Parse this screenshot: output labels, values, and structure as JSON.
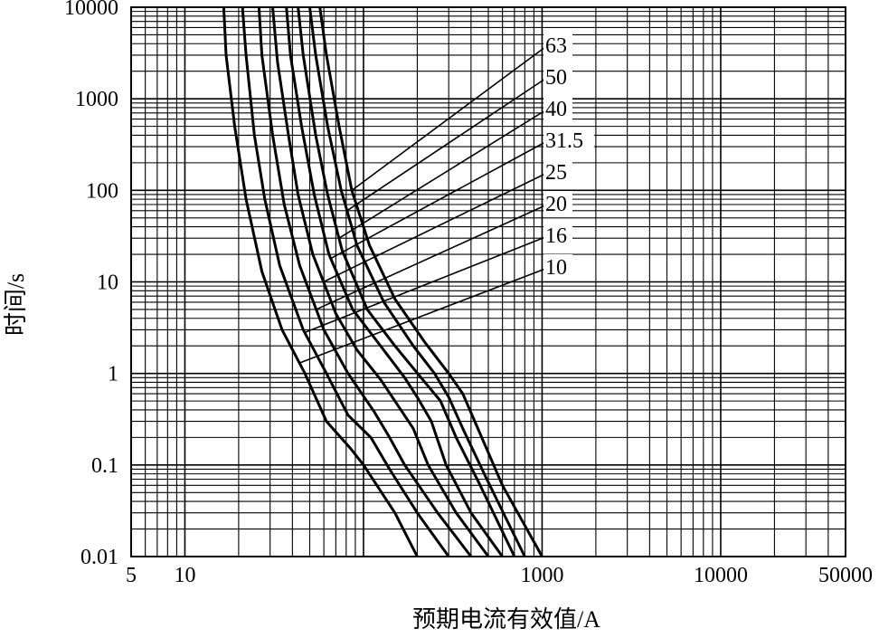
{
  "chart_data": {
    "type": "line",
    "title": "",
    "xlabel": "预期电流有效值/A",
    "ylabel": "时间/s",
    "xscale": "log",
    "yscale": "log",
    "xlim": [
      5,
      50000
    ],
    "ylim": [
      0.01,
      10000
    ],
    "grid": true,
    "x_ticks": [
      {
        "value": 5,
        "label": "5"
      },
      {
        "value": 10,
        "label": "10"
      },
      {
        "value": 1000,
        "label": "1000"
      },
      {
        "value": 10000,
        "label": "10000"
      },
      {
        "value": 50000,
        "label": "50000"
      }
    ],
    "y_ticks": [
      {
        "value": 0.01,
        "label": "0.01"
      },
      {
        "value": 0.1,
        "label": "0.1"
      },
      {
        "value": 1,
        "label": "1"
      },
      {
        "value": 10,
        "label": "10"
      },
      {
        "value": 100,
        "label": "100"
      },
      {
        "value": 1000,
        "label": "1000"
      },
      {
        "value": 10000,
        "label": "10000"
      }
    ],
    "series": [
      {
        "name": "10",
        "points": [
          [
            16.5,
            10000
          ],
          [
            17,
            3000
          ],
          [
            19,
            500
          ],
          [
            22,
            80
          ],
          [
            27,
            13
          ],
          [
            35,
            3
          ],
          [
            47,
            1
          ],
          [
            62,
            0.3
          ],
          [
            85,
            0.15
          ],
          [
            100,
            0.1
          ],
          [
            150,
            0.03
          ],
          [
            200,
            0.01
          ]
        ]
      },
      {
        "name": "16",
        "points": [
          [
            21,
            10000
          ],
          [
            22,
            3000
          ],
          [
            24.5,
            400
          ],
          [
            28,
            80
          ],
          [
            34,
            15
          ],
          [
            46,
            3
          ],
          [
            62,
            1
          ],
          [
            82,
            0.35
          ],
          [
            110,
            0.2
          ],
          [
            140,
            0.09
          ],
          [
            200,
            0.03
          ],
          [
            300,
            0.01
          ]
        ]
      },
      {
        "name": "20",
        "points": [
          [
            26,
            10000
          ],
          [
            27,
            3000
          ],
          [
            31,
            400
          ],
          [
            36,
            70
          ],
          [
            44,
            15
          ],
          [
            60,
            3
          ],
          [
            82,
            1
          ],
          [
            115,
            0.38
          ],
          [
            140,
            0.2
          ],
          [
            170,
            0.1
          ],
          [
            260,
            0.03
          ],
          [
            400,
            0.01
          ]
        ]
      },
      {
        "name": "25",
        "points": [
          [
            31,
            10000
          ],
          [
            33,
            2500
          ],
          [
            38,
            400
          ],
          [
            43,
            90
          ],
          [
            52,
            20
          ],
          [
            70,
            4.5
          ],
          [
            92,
            1.8
          ],
          [
            125,
            0.85
          ],
          [
            150,
            0.5
          ],
          [
            190,
            0.25
          ],
          [
            230,
            0.1
          ],
          [
            330,
            0.03
          ],
          [
            500,
            0.01
          ]
        ]
      },
      {
        "name": "31.5",
        "points": [
          [
            37,
            10000
          ],
          [
            39,
            3000
          ],
          [
            45,
            500
          ],
          [
            53,
            90
          ],
          [
            64,
            20
          ],
          [
            87,
            5
          ],
          [
            120,
            2.2
          ],
          [
            170,
            0.9
          ],
          [
            200,
            0.55
          ],
          [
            240,
            0.3
          ],
          [
            290,
            0.1
          ],
          [
            400,
            0.03
          ],
          [
            600,
            0.01
          ]
        ]
      },
      {
        "name": "40",
        "points": [
          [
            43,
            10000
          ],
          [
            46,
            3000
          ],
          [
            54,
            400
          ],
          [
            63,
            90
          ],
          [
            76,
            22
          ],
          [
            105,
            5
          ],
          [
            150,
            2
          ],
          [
            210,
            0.9
          ],
          [
            270,
            0.5
          ],
          [
            330,
            0.2
          ],
          [
            450,
            0.06
          ],
          [
            700,
            0.01
          ]
        ]
      },
      {
        "name": "50",
        "points": [
          [
            50,
            10000
          ],
          [
            54,
            3000
          ],
          [
            63,
            500
          ],
          [
            75,
            100
          ],
          [
            92,
            25
          ],
          [
            130,
            6
          ],
          [
            190,
            2
          ],
          [
            250,
            1
          ],
          [
            300,
            0.55
          ],
          [
            360,
            0.25
          ],
          [
            490,
            0.07
          ],
          [
            800,
            0.01
          ]
        ]
      },
      {
        "name": "63",
        "points": [
          [
            57,
            10000
          ],
          [
            62,
            3000
          ],
          [
            73,
            500
          ],
          [
            86,
            100
          ],
          [
            108,
            25
          ],
          [
            150,
            6.5
          ],
          [
            220,
            2.2
          ],
          [
            300,
            1
          ],
          [
            360,
            0.6
          ],
          [
            420,
            0.3
          ],
          [
            600,
            0.06
          ],
          [
            1000,
            0.01
          ]
        ]
      }
    ]
  }
}
